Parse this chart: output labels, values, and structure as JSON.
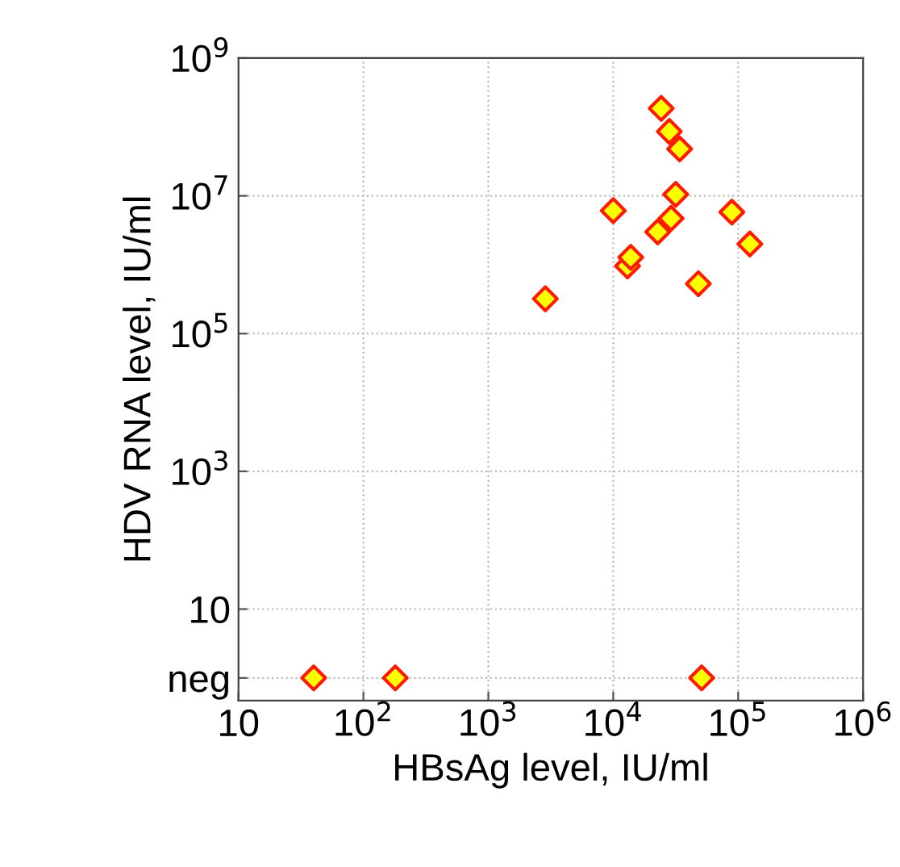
{
  "chart_data": {
    "type": "scatter",
    "xlabel": "HBsAg level, IU/ml",
    "ylabel": "HDV RNA level, IU/ml",
    "log": "xy",
    "marker": "diamond",
    "grid": true,
    "series": [
      {
        "color": "#ffff00",
        "x": [
          40,
          180,
          51000,
          2860,
          10000,
          13000,
          13800,
          22700,
          29000,
          31600,
          24200,
          28100,
          34000,
          48000,
          89000,
          124000
        ],
        "values": [
          1,
          1,
          1,
          320000,
          6100000,
          960000,
          1280000,
          3000000,
          4700000,
          10500000,
          186000000,
          86000000,
          48000000,
          530000,
          5800000,
          2000000
        ]
      }
    ],
    "xlim": [
      10,
      1000000
    ],
    "ylim": [
      0.47,
      1000000000
    ],
    "xticks": [
      10,
      {
        "value": 100,
        "label": "10$^{2}$"
      },
      {
        "value": 1000,
        "label": "10$^{3}$"
      },
      {
        "value": 10000,
        "label": "10$^{4}$"
      },
      {
        "value": 100000,
        "label": "10$^{5}$"
      },
      {
        "value": 1000000,
        "label": "10$^{6}$"
      }
    ],
    "yticks": [
      {
        "value": 1,
        "label": "neg"
      },
      10,
      {
        "value": 1000,
        "label": "10$^{3}$"
      },
      {
        "value": 100000,
        "label": "10$^{5}$"
      },
      {
        "value": 10000000,
        "label": "10$^{7}$"
      },
      {
        "value": 1000000000,
        "label": "10$^{9}$"
      }
    ]
  }
}
